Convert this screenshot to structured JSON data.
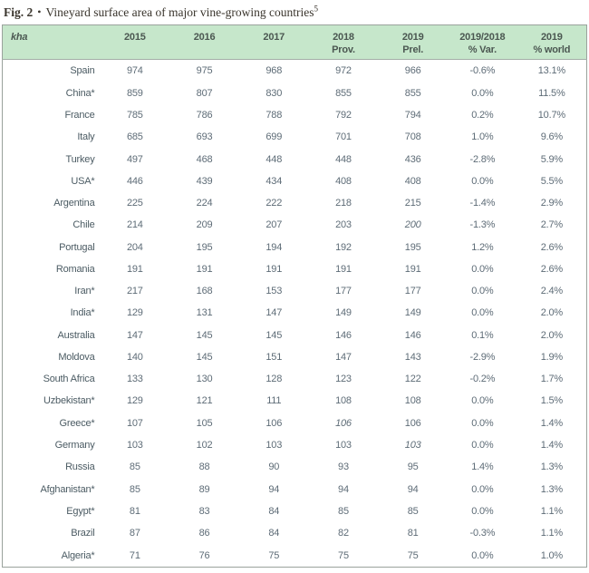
{
  "caption": {
    "fig_label": "Fig. 2",
    "separator": "•",
    "title_text": "Vineyard surface area of major vine-growing countries",
    "footnote_mark": "5"
  },
  "colors": {
    "header_bg": "#c6e7cb",
    "header_text": "#4b5751",
    "body_text": "#5e6c77",
    "country_text": "#4b5b63",
    "table_border": "#9aa29c",
    "caption_text": "#3a352d"
  },
  "chart_data": {
    "type": "table",
    "title": "Fig. 2 • Vineyard surface area of major vine-growing countries",
    "unit_label": "kha",
    "columns": [
      {
        "line1": "2015",
        "line2": ""
      },
      {
        "line1": "2016",
        "line2": ""
      },
      {
        "line1": "2017",
        "line2": ""
      },
      {
        "line1": "2018",
        "line2": "Prov."
      },
      {
        "line1": "2019",
        "line2": "Prel."
      },
      {
        "line1": "2019/2018",
        "line2": "% Var."
      },
      {
        "line1": "2019",
        "line2": "% world"
      }
    ],
    "rows": [
      {
        "country": "Spain",
        "values": [
          "974",
          "975",
          "968",
          "972",
          "966",
          "-0.6%",
          "13.1%"
        ],
        "italic_cols": []
      },
      {
        "country": "China*",
        "values": [
          "859",
          "807",
          "830",
          "855",
          "855",
          "0.0%",
          "11.5%"
        ],
        "italic_cols": []
      },
      {
        "country": "France",
        "values": [
          "785",
          "786",
          "788",
          "792",
          "794",
          "0.2%",
          "10.7%"
        ],
        "italic_cols": []
      },
      {
        "country": "Italy",
        "values": [
          "685",
          "693",
          "699",
          "701",
          "708",
          "1.0%",
          "9.6%"
        ],
        "italic_cols": []
      },
      {
        "country": "Turkey",
        "values": [
          "497",
          "468",
          "448",
          "448",
          "436",
          "-2.8%",
          "5.9%"
        ],
        "italic_cols": []
      },
      {
        "country": "USA*",
        "values": [
          "446",
          "439",
          "434",
          "408",
          "408",
          "0.0%",
          "5.5%"
        ],
        "italic_cols": []
      },
      {
        "country": "Argentina",
        "values": [
          "225",
          "224",
          "222",
          "218",
          "215",
          "-1.4%",
          "2.9%"
        ],
        "italic_cols": []
      },
      {
        "country": "Chile",
        "values": [
          "214",
          "209",
          "207",
          "203",
          "200",
          "-1.3%",
          "2.7%"
        ],
        "italic_cols": [
          4
        ]
      },
      {
        "country": "Portugal",
        "values": [
          "204",
          "195",
          "194",
          "192",
          "195",
          "1.2%",
          "2.6%"
        ],
        "italic_cols": []
      },
      {
        "country": "Romania",
        "values": [
          "191",
          "191",
          "191",
          "191",
          "191",
          "0.0%",
          "2.6%"
        ],
        "italic_cols": []
      },
      {
        "country": "Iran*",
        "values": [
          "217",
          "168",
          "153",
          "177",
          "177",
          "0.0%",
          "2.4%"
        ],
        "italic_cols": []
      },
      {
        "country": "India*",
        "values": [
          "129",
          "131",
          "147",
          "149",
          "149",
          "0.0%",
          "2.0%"
        ],
        "italic_cols": []
      },
      {
        "country": "Australia",
        "values": [
          "147",
          "145",
          "145",
          "146",
          "146",
          "0.1%",
          "2.0%"
        ],
        "italic_cols": []
      },
      {
        "country": "Moldova",
        "values": [
          "140",
          "145",
          "151",
          "147",
          "143",
          "-2.9%",
          "1.9%"
        ],
        "italic_cols": []
      },
      {
        "country": "South Africa",
        "values": [
          "133",
          "130",
          "128",
          "123",
          "122",
          "-0.2%",
          "1.7%"
        ],
        "italic_cols": []
      },
      {
        "country": "Uzbekistan*",
        "values": [
          "129",
          "121",
          "111",
          "108",
          "108",
          "0.0%",
          "1.5%"
        ],
        "italic_cols": []
      },
      {
        "country": "Greece*",
        "values": [
          "107",
          "105",
          "106",
          "106",
          "106",
          "0.0%",
          "1.4%"
        ],
        "italic_cols": [
          3
        ]
      },
      {
        "country": "Germany",
        "values": [
          "103",
          "102",
          "103",
          "103",
          "103",
          "0.0%",
          "1.4%"
        ],
        "italic_cols": [
          4
        ]
      },
      {
        "country": "Russia",
        "values": [
          "85",
          "88",
          "90",
          "93",
          "95",
          "1.4%",
          "1.3%"
        ],
        "italic_cols": []
      },
      {
        "country": "Afghanistan*",
        "values": [
          "85",
          "89",
          "94",
          "94",
          "94",
          "0.0%",
          "1.3%"
        ],
        "italic_cols": []
      },
      {
        "country": "Egypt*",
        "values": [
          "81",
          "83",
          "84",
          "85",
          "85",
          "0.0%",
          "1.1%"
        ],
        "italic_cols": []
      },
      {
        "country": "Brazil",
        "values": [
          "87",
          "86",
          "84",
          "82",
          "81",
          "-0.3%",
          "1.1%"
        ],
        "italic_cols": []
      },
      {
        "country": "Algeria*",
        "values": [
          "71",
          "76",
          "75",
          "75",
          "75",
          "0.0%",
          "1.0%"
        ],
        "italic_cols": []
      }
    ]
  }
}
